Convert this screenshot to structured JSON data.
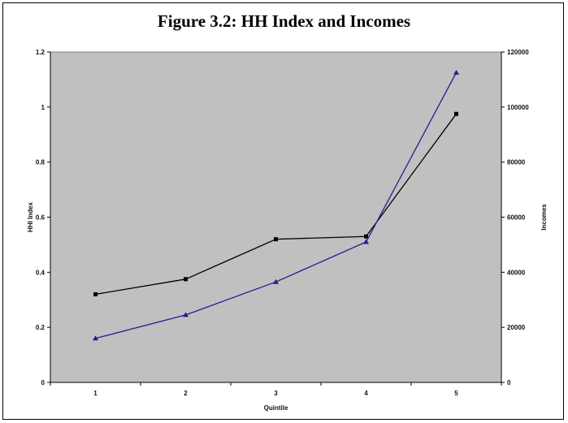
{
  "chart_data": {
    "type": "line",
    "title": "Figure 3.2:  HH Index and Incomes",
    "xlabel": "Quintile",
    "ylabel_left": "HHI Index",
    "ylabel_right": "Incomes",
    "categories": [
      "1",
      "2",
      "3",
      "4",
      "5"
    ],
    "left_axis": {
      "min": 0,
      "max": 1.2,
      "ticks": [
        "0",
        "0.2",
        "0.4",
        "0.6",
        "0.8",
        "1",
        "1.2"
      ]
    },
    "right_axis": {
      "min": 0,
      "max": 120000,
      "ticks": [
        "0",
        "20000",
        "40000",
        "60000",
        "80000",
        "100000",
        "120000"
      ]
    },
    "grid": false,
    "plot_background": "#c0c0c0",
    "series": [
      {
        "axis": "left",
        "marker": "square",
        "color": "#000000",
        "values": [
          0.32,
          0.375,
          0.52,
          0.53,
          0.975
        ]
      },
      {
        "axis": "right",
        "marker": "triangle",
        "color": "#1f1f8f",
        "values": [
          16000,
          24500,
          36500,
          51000,
          112500
        ]
      }
    ]
  }
}
